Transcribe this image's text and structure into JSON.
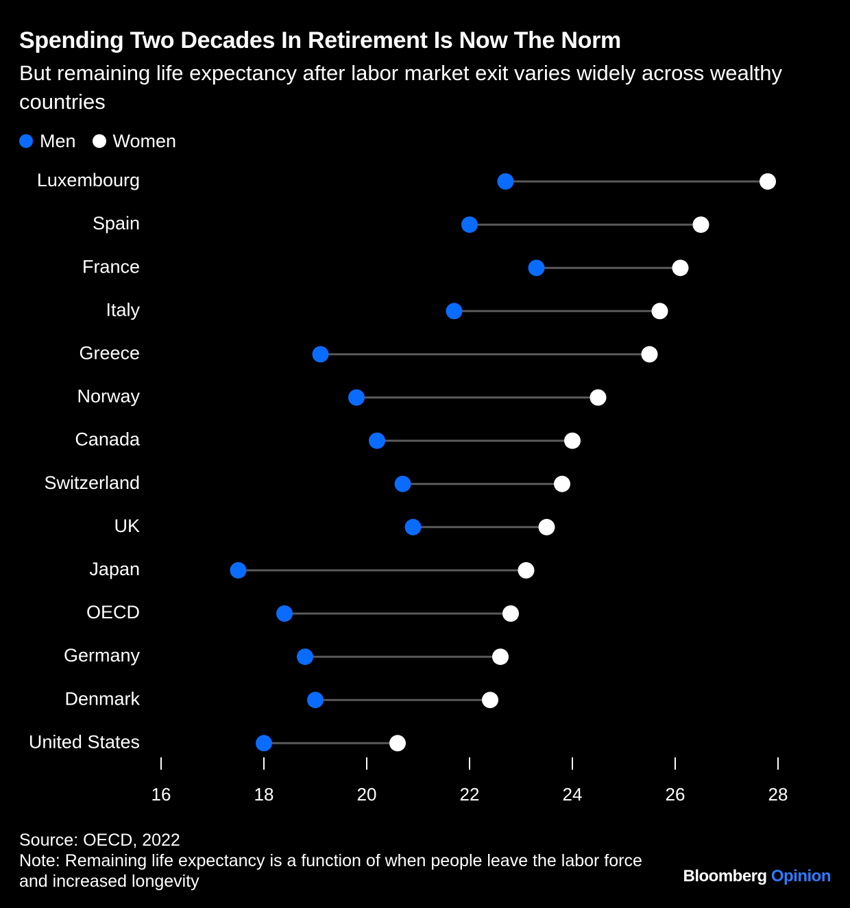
{
  "header": {
    "title": "Spending Two Decades In Retirement Is Now The Norm",
    "subtitle": "But remaining life expectancy after labor market exit varies widely across wealthy countries"
  },
  "legend": {
    "men_label": "Men",
    "women_label": "Women"
  },
  "colors": {
    "men": "#0a6cff",
    "women": "#ffffff",
    "connector": "#5a5a5a",
    "background": "#000000",
    "opinion": "#2f7bff"
  },
  "chart_data": {
    "type": "dumbbell",
    "categories": [
      "Luxembourg",
      "Spain",
      "France",
      "Italy",
      "Greece",
      "Norway",
      "Canada",
      "Switzerland",
      "UK",
      "Japan",
      "OECD",
      "Germany",
      "Denmark",
      "United States"
    ],
    "series": [
      {
        "name": "Men",
        "values": [
          22.7,
          22.0,
          23.3,
          21.7,
          19.1,
          19.8,
          20.2,
          20.7,
          20.9,
          17.5,
          18.4,
          18.8,
          19.0,
          18.0
        ]
      },
      {
        "name": "Women",
        "values": [
          27.8,
          26.5,
          26.1,
          25.7,
          25.5,
          24.5,
          24.0,
          23.8,
          23.5,
          23.1,
          22.8,
          22.6,
          22.4,
          20.6
        ]
      }
    ],
    "xlim": [
      16,
      28
    ],
    "xticks": [
      "16",
      "18",
      "20",
      "22",
      "24",
      "26",
      "28"
    ],
    "legend_position": "top-left",
    "grid": false
  },
  "footer": {
    "source": "Source: OECD, 2022",
    "note": "Note: Remaining life expectancy is a function of when people leave the labor force and increased longevity",
    "brand_main": "Bloomberg",
    "brand_accent": "Opinion"
  }
}
